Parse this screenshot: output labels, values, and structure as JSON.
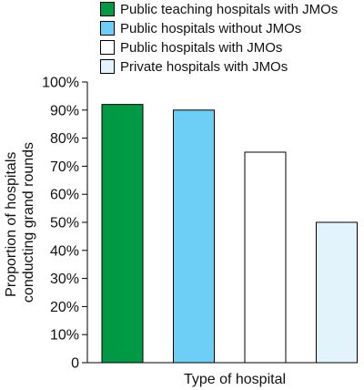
{
  "chart_data": {
    "type": "bar",
    "categories": [
      "Public teaching hospitals with JMOs",
      "Public hospitals without JMOs",
      "Public hospitals with JMOs",
      "Private hospitals with JMOs"
    ],
    "values": [
      92,
      90,
      75,
      50
    ],
    "colors": [
      "#009a44",
      "#6ecff6",
      "#ffffff",
      "#e3f3fc"
    ],
    "xlabel": "Type of hospital",
    "ylabel": "Proportion of hospitals conducting grand rounds",
    "ylabel_lines": [
      "Proportion of hospitals",
      "conducting grand rounds"
    ],
    "ylim": [
      0,
      100
    ],
    "yticks": [
      "0",
      "10%",
      "20%",
      "30%",
      "40%",
      "50%",
      "60%",
      "70%",
      "80%",
      "90%",
      "100%"
    ],
    "legend_position": "top",
    "grid": false
  }
}
